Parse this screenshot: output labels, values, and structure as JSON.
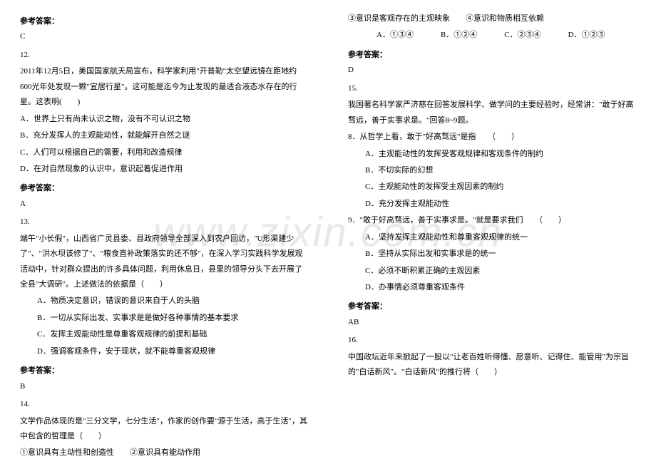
{
  "watermark": "www.zixin.com.cn",
  "left": {
    "ans11_label": "参考答案：",
    "ans11_value": "C",
    "q12_num": "12.",
    "q12_text": "2011年12月5日，美国国家航天局宣布，科学家利用\"开普勒\"太空望远镜在距地约600光年处发现一颗\"宜居行星\"。这可能是迄今为止发现的最适合液态水存在的行星。这表明(　　)",
    "q12_a": "A．世界上只有尚未认识之物，没有不可认识之物",
    "q12_b": "B．充分发挥人的主观能动性，就能解开自然之谜",
    "q12_c": "C．人们可以根据自己的需要，利用和改造规律",
    "q12_d": "D．在对自然现象的认识中，意识起着促进作用",
    "ans12_label": "参考答案：",
    "ans12_value": "A",
    "q13_num": "13.",
    "q13_text": "端午\"小长假\"，山西省广灵县委、县政府领导全部深入到农户回访，\"U形渠建少了\"、\"洪水坝该修了\"、\"粮食直补政策落实的还不够\"，在深入学习实践科学发展观活动中，针对群众提出的许多具体问题，利用休息日，县里的领导分头下去开展了全县\"大调研\"。上述做法的依据是（　　）",
    "q13_a": "A．物质决定意识，错误的意识来自于人的头脑",
    "q13_b": "B．一切从实际出发、实事求是是做好各种事情的基本要求",
    "q13_c": "C．发挥主观能动性是尊重客观规律的前提和基础",
    "q13_d": "D．强调客观条件，安于现状，就不能尊重客观规律",
    "ans13_label": "参考答案：",
    "ans13_value": "B",
    "q14_num": "14.",
    "q14_text": "文学作品体现的是\"三分文学，七分生活\"，作家的创作要\"源于生活，高于生活\"，其中包含的哲理是（　　）",
    "q14_line1": "①意识具有主动性和创造性　　②意识具有能动作用"
  },
  "right": {
    "q14_line2": "③意识是客观存在的主观映象　　④意识和物质相互依赖",
    "opt_a": "A．①③④",
    "opt_b": "B．①②④",
    "opt_c": "C．②③④",
    "opt_d": "D．①②③",
    "ans14_label": "参考答案：",
    "ans14_value": "D",
    "q15_num": "15.",
    "q15_text": "我国著名科学家严济慈在回答发展科学、做学问的主要经验时，经常讲：\"敢于好高骛远，善于实事求是。\"回答8~9题。",
    "q15_8": "8．从哲学上看，敢于\"好高骛远\"是指　　（　　）",
    "q15_8a": "A．主观能动性的发挥受客观规律和客观条件的制约",
    "q15_8b": "B．不切实际的幻想",
    "q15_8c": "C．主观能动性的发挥受主观因素的制约",
    "q15_8d": "D．充分发挥主观能动性",
    "q15_9": "9．\"敢于好高骛远，善于实事求是。\"就是要求我们　　（　　）",
    "q15_9a": "A．坚持发挥主观能动性和尊重客观规律的统一",
    "q15_9b": "B．坚持从实际出发和实事求是的统一",
    "q15_9c": "C．必须不断积累正确的主观因素",
    "q15_9d": "D．办事情必须尊重客观条件",
    "ans15_label": "参考答案：",
    "ans15_value": "AB",
    "q16_num": "16.",
    "q16_text": "中国政坛近年来掀起了一股以\"让老百姓听得懂、愿意听、记得住、能管用\"为宗旨的\"白话新风\"。\"白话新风\"的推行将（　　）"
  },
  "colors": {
    "text": "#000000",
    "background": "#ffffff",
    "watermark": "rgba(0,0,0,0.09)"
  }
}
